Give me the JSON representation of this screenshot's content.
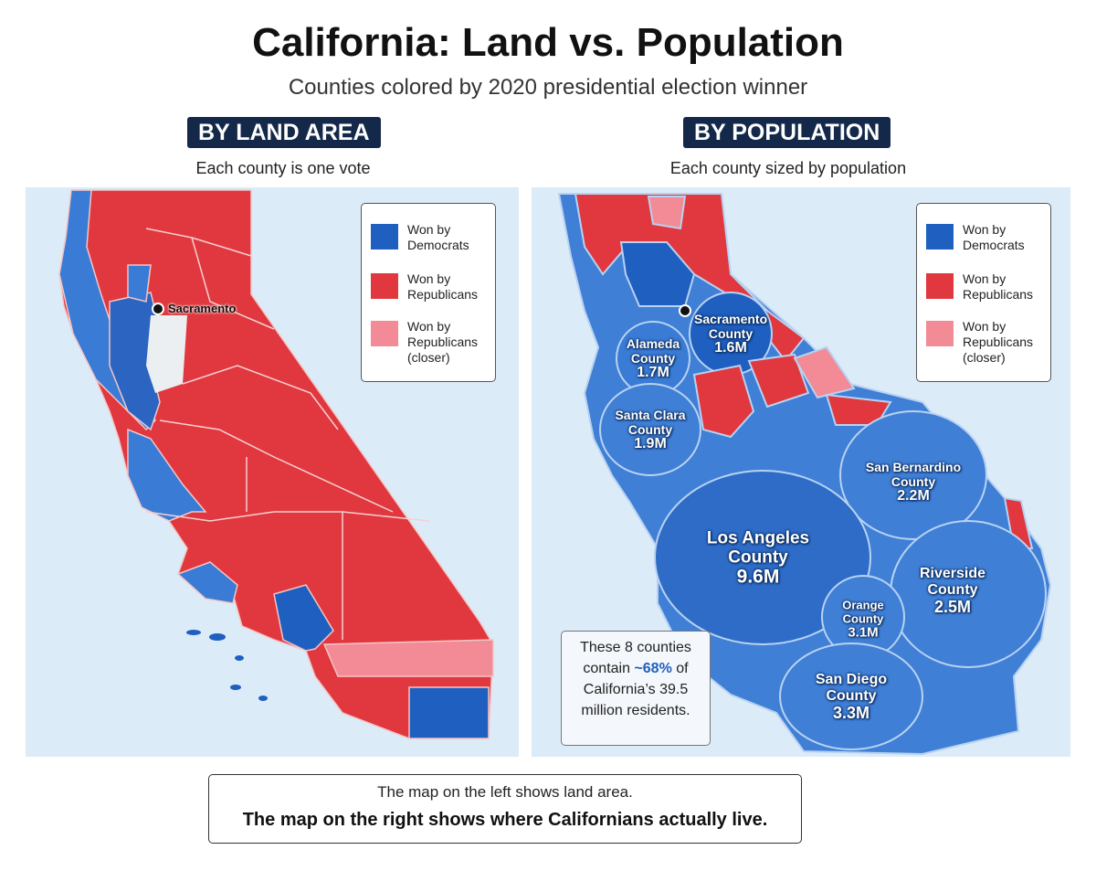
{
  "header": {
    "title": "California: Land vs. Population",
    "subtitle": "Counties colored by 2020 presidential election winner"
  },
  "left": {
    "badge": "BY LAND AREA",
    "caption": "Each county is one vote",
    "city": "Sacramento"
  },
  "right": {
    "badge": "BY POPULATION",
    "caption": "Each county sized by population",
    "counties": [
      {
        "name": "Sacramento County",
        "population": "1.6M"
      },
      {
        "name": "Alameda County",
        "population": "1.7M"
      },
      {
        "name": "Santa Clara County",
        "population": "1.9M"
      },
      {
        "name": "San Bernardino County",
        "population": "2.2M"
      },
      {
        "name": "Los Angeles County",
        "population": "9.6M"
      },
      {
        "name": "Riverside County",
        "population": "2.5M"
      },
      {
        "name": "Orange County",
        "population": "3.1M"
      },
      {
        "name": "San Diego County",
        "population": "3.3M"
      }
    ],
    "note": {
      "before": "These 8 counties contain",
      "highlight": "~68%",
      "after": "of California’s 39.5 million residents."
    }
  },
  "legend": [
    "Won by Democrats",
    "Won by Republicans",
    "Won by Republicans (closer)"
  ],
  "footer": {
    "line1": "The map on the left shows land area.",
    "line2": "The map on the right shows where Californians actually live."
  }
}
